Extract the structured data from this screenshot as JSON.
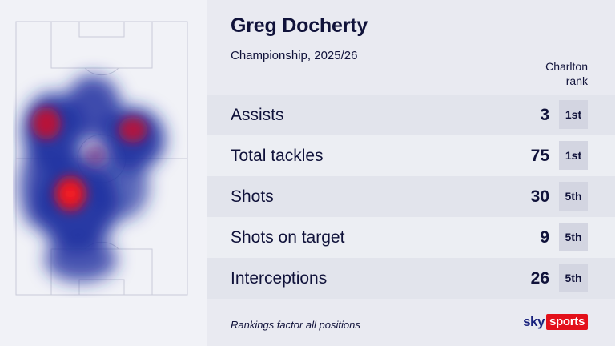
{
  "player": {
    "name": "Greg Docherty",
    "competition": "Championship, 2025/26"
  },
  "rank_header": {
    "line1": "Charlton",
    "line2": "rank"
  },
  "stats": [
    {
      "label": "Assists",
      "value": "3",
      "rank": "1st"
    },
    {
      "label": "Total tackles",
      "value": "75",
      "rank": "1st"
    },
    {
      "label": "Shots",
      "value": "30",
      "rank": "5th"
    },
    {
      "label": "Shots on target",
      "value": "9",
      "rank": "5th"
    },
    {
      "label": "Interceptions",
      "value": "26",
      "rank": "5th"
    }
  ],
  "footnote": "Rankings factor all positions",
  "logo": {
    "sky": "sky",
    "sports": "sports"
  },
  "colors": {
    "heat_hot": "#ff1a1a",
    "heat_cold": "#1e2fa0",
    "brand_red": "#e3101a",
    "text_navy": "#10123a"
  }
}
